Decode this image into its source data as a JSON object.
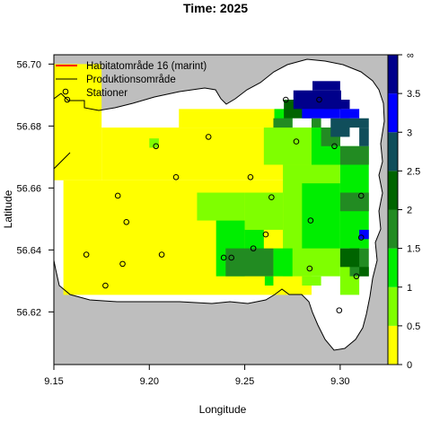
{
  "title": "Time: 2025",
  "axes": {
    "xlabel": "Longitude",
    "ylabel": "Latitude",
    "xlim": [
      9.15,
      9.325
    ],
    "ylim": [
      56.603,
      56.703
    ],
    "x_ticks": [
      {
        "value": 9.15,
        "label": "9.15"
      },
      {
        "value": 9.2,
        "label": "9.20"
      },
      {
        "value": 9.25,
        "label": "9.25"
      },
      {
        "value": 9.3,
        "label": "9.30"
      }
    ],
    "y_ticks": [
      {
        "value": 56.62,
        "label": "56.62"
      },
      {
        "value": 56.64,
        "label": "56.64"
      },
      {
        "value": 56.66,
        "label": "56.66"
      },
      {
        "value": 56.68,
        "label": "56.68"
      },
      {
        "value": 56.7,
        "label": "56.70"
      }
    ]
  },
  "legend": {
    "position": "top-left",
    "items": [
      {
        "label": "Habitatområde 16 (marint)",
        "symbol": "line",
        "color": "#ff0000"
      },
      {
        "label": "Produktionsområde",
        "symbol": "line",
        "color": "#000000"
      },
      {
        "label": "Stationer",
        "symbol": "circle",
        "color": "#000000"
      }
    ]
  },
  "colors": {
    "land": "#bebebe",
    "sea": "#ffffff"
  },
  "colorbar": {
    "levels": [
      {
        "from": 0,
        "to": 0.5,
        "color": "#ffff00"
      },
      {
        "from": 0.5,
        "to": 1,
        "color": "#7fff00"
      },
      {
        "from": 1,
        "to": 1.5,
        "color": "#00ee00"
      },
      {
        "from": 1.5,
        "to": 2,
        "color": "#228b22"
      },
      {
        "from": 2,
        "to": 2.5,
        "color": "#006400"
      },
      {
        "from": 2.5,
        "to": 3,
        "color": "#104e5b"
      },
      {
        "from": 3,
        "to": 3.5,
        "color": "#0000ff"
      },
      {
        "from": 3.5,
        "to": 4,
        "color": "#00008b"
      }
    ],
    "tick_labels": [
      "0",
      "0.5",
      "1",
      "1.5",
      "2",
      "2.5",
      "3",
      "3.5",
      "∞"
    ]
  },
  "chart_data": {
    "type": "heatmap",
    "title": "Time: 2025",
    "xlabel": "Longitude",
    "ylabel": "Latitude",
    "xlim": [
      9.15,
      9.325
    ],
    "ylim": [
      56.603,
      56.703
    ],
    "cell_size": {
      "lon": 0.005,
      "lat": 0.003
    },
    "cells": [
      {
        "lon": [
          9.15,
          9.175
        ],
        "lat": [
          56.6625,
          56.7
        ],
        "level": 0
      },
      {
        "lon": [
          9.155,
          9.285
        ],
        "lat": [
          56.6255,
          56.6625
        ],
        "level": 0
      },
      {
        "lon": [
          9.175,
          9.285
        ],
        "lat": [
          56.6625,
          56.6795
        ],
        "level": 0
      },
      {
        "lon": [
          9.2155,
          9.27
        ],
        "lat": [
          56.6795,
          56.6855
        ],
        "level": 0
      },
      {
        "lon": [
          9.2,
          9.205
        ],
        "lat": [
          56.673,
          56.676
        ],
        "level": 1
      },
      {
        "lon": [
          9.225,
          9.25
        ],
        "lat": [
          56.6495,
          56.6585
        ],
        "level": 1
      },
      {
        "lon": [
          9.25,
          9.27
        ],
        "lat": [
          56.6465,
          56.6585
        ],
        "level": 1
      },
      {
        "lon": [
          9.26,
          9.3
        ],
        "lat": [
          56.6675,
          56.6795
        ],
        "level": 1
      },
      {
        "lon": [
          9.27,
          9.3
        ],
        "lat": [
          56.6315,
          56.6675
        ],
        "level": 1
      },
      {
        "lon": [
          9.28,
          9.29
        ],
        "lat": [
          56.6285,
          56.6315
        ],
        "level": 1
      },
      {
        "lon": [
          9.3,
          9.31
        ],
        "lat": [
          56.6255,
          56.6375
        ],
        "level": 1
      },
      {
        "lon": [
          9.28,
          9.3
        ],
        "lat": [
          56.6405,
          56.6615
        ],
        "level": 2
      },
      {
        "lon": [
          9.285,
          9.3
        ],
        "lat": [
          56.6675,
          56.6795
        ],
        "level": 2
      },
      {
        "lon": [
          9.3,
          9.315
        ],
        "lat": [
          56.6405,
          56.6735
        ],
        "level": 2
      },
      {
        "lon": [
          9.265,
          9.275
        ],
        "lat": [
          56.6315,
          56.6405
        ],
        "level": 2
      },
      {
        "lon": [
          9.2605,
          9.265
        ],
        "lat": [
          56.6285,
          56.6315
        ],
        "level": 2
      },
      {
        "lon": [
          9.25,
          9.26
        ],
        "lat": [
          56.6375,
          56.6465
        ],
        "level": 2
      },
      {
        "lon": [
          9.235,
          9.25
        ],
        "lat": [
          56.6315,
          56.6495
        ],
        "level": 2
      },
      {
        "lon": [
          9.2655,
          9.275
        ],
        "lat": [
          56.6795,
          56.6855
        ],
        "level": 2
      },
      {
        "lon": [
          9.24,
          9.265
        ],
        "lat": [
          56.6315,
          56.6405
        ],
        "level": 3
      },
      {
        "lon": [
          9.305,
          9.315
        ],
        "lat": [
          56.6315,
          56.6405
        ],
        "level": 3
      },
      {
        "lon": [
          9.3,
          9.315
        ],
        "lat": [
          56.6525,
          56.6585
        ],
        "level": 3
      },
      {
        "lon": [
          9.3,
          9.315
        ],
        "lat": [
          56.6675,
          56.6735
        ],
        "level": 3
      },
      {
        "lon": [
          9.265,
          9.275
        ],
        "lat": [
          56.6795,
          56.6825
        ],
        "level": 3
      },
      {
        "lon": [
          9.29,
          9.3
        ],
        "lat": [
          56.6735,
          56.6795
        ],
        "level": 3
      },
      {
        "lon": [
          9.285,
          9.29
        ],
        "lat": [
          56.6795,
          56.6825
        ],
        "level": 3
      },
      {
        "lon": [
          9.2705,
          9.285
        ],
        "lat": [
          56.6825,
          56.6885
        ],
        "level": 4
      },
      {
        "lon": [
          9.3,
          9.31
        ],
        "lat": [
          56.6345,
          56.6405
        ],
        "level": 4
      },
      {
        "lon": [
          9.31,
          9.315
        ],
        "lat": [
          56.6315,
          56.6345
        ],
        "level": 4
      },
      {
        "lon": [
          9.295,
          9.305
        ],
        "lat": [
          56.6765,
          56.6825
        ],
        "level": 5
      },
      {
        "lon": [
          9.3,
          9.315
        ],
        "lat": [
          56.6795,
          56.6825
        ],
        "level": 5
      },
      {
        "lon": [
          9.31,
          9.315
        ],
        "lat": [
          56.6735,
          56.6795
        ],
        "level": 5
      },
      {
        "lon": [
          9.28,
          9.3
        ],
        "lat": [
          56.6825,
          56.6885
        ],
        "level": 6
      },
      {
        "lon": [
          9.3,
          9.31
        ],
        "lat": [
          56.6825,
          56.6855
        ],
        "level": 6
      },
      {
        "lon": [
          9.31,
          9.315
        ],
        "lat": [
          56.6435,
          56.6465
        ],
        "level": 6
      },
      {
        "lon": [
          9.2755,
          9.3005
        ],
        "lat": [
          56.6855,
          56.6915
        ],
        "level": 7
      },
      {
        "lon": [
          9.2855,
          9.3
        ],
        "lat": [
          56.6915,
          56.6945
        ],
        "level": 7
      },
      {
        "lon": [
          9.2915,
          9.305
        ],
        "lat": [
          56.6855,
          56.6885
        ],
        "level": 7
      }
    ],
    "stations": [
      {
        "lon": 9.157,
        "lat": 56.6885
      },
      {
        "lon": 9.2035,
        "lat": 56.6735
      },
      {
        "lon": 9.231,
        "lat": 56.6765
      },
      {
        "lon": 9.2715,
        "lat": 56.6885
      },
      {
        "lon": 9.289,
        "lat": 56.6885
      },
      {
        "lon": 9.277,
        "lat": 56.675
      },
      {
        "lon": 9.297,
        "lat": 56.6735
      },
      {
        "lon": 9.214,
        "lat": 56.6635
      },
      {
        "lon": 9.253,
        "lat": 56.6635
      },
      {
        "lon": 9.1835,
        "lat": 56.6575
      },
      {
        "lon": 9.264,
        "lat": 56.657
      },
      {
        "lon": 9.311,
        "lat": 56.6575
      },
      {
        "lon": 9.188,
        "lat": 56.649
      },
      {
        "lon": 9.2845,
        "lat": 56.6495
      },
      {
        "lon": 9.261,
        "lat": 56.645
      },
      {
        "lon": 9.311,
        "lat": 56.644
      },
      {
        "lon": 9.2545,
        "lat": 56.6405
      },
      {
        "lon": 9.167,
        "lat": 56.6385
      },
      {
        "lon": 9.2065,
        "lat": 56.6385
      },
      {
        "lon": 9.239,
        "lat": 56.6375
      },
      {
        "lon": 9.243,
        "lat": 56.6375
      },
      {
        "lon": 9.186,
        "lat": 56.6355
      },
      {
        "lon": 9.284,
        "lat": 56.634
      },
      {
        "lon": 9.3085,
        "lat": 56.6315
      },
      {
        "lon": 9.177,
        "lat": 56.6285
      },
      {
        "lon": 9.2995,
        "lat": 56.6205
      }
    ]
  }
}
